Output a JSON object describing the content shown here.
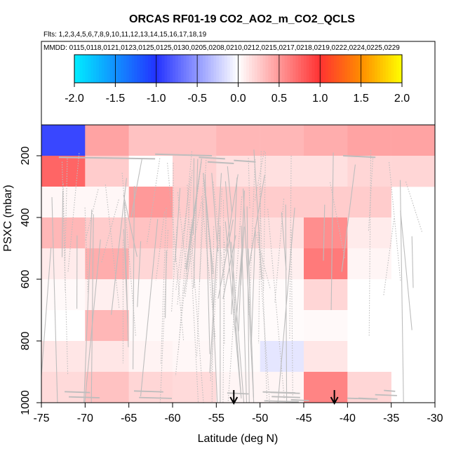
{
  "chart_data": {
    "type": "heatmap",
    "title": "ORCAS RF01-19 CO2_AO2_m_CO2_QCLS",
    "flights_label": "Flts: 1,2,3,4,5,6,7,8,9,10,11,12,13,14,15,16,17,18,19",
    "mmdd_label": "MMDD: 0115,0118,0121,0123,0125,0125,0130,0205,0208,0210,0212,0215,0217,0218,0219,0222,0224,0225,0229",
    "xlabel": "Latitude (deg N)",
    "ylabel": "PSXC (mbar)",
    "xlim": [
      -75,
      -30
    ],
    "ylim": [
      1000,
      100
    ],
    "x_ticks": [
      -75,
      -70,
      -65,
      -60,
      -55,
      -50,
      -45,
      -40,
      -35,
      -30
    ],
    "x_tick_labels": [
      "-75",
      "-70",
      "-65",
      "-60",
      "-55",
      "-50",
      "-45",
      "-40",
      "-35",
      "-30"
    ],
    "y_ticks": [
      200,
      400,
      600,
      800,
      1000
    ],
    "y_tick_labels": [
      "200",
      "400",
      "600",
      "800",
      "1000"
    ],
    "colorbar": {
      "range": [
        -2.0,
        2.0
      ],
      "ticks": [
        -2.0,
        -1.5,
        -1.0,
        -0.5,
        0.0,
        0.5,
        1.0,
        1.5,
        2.0
      ],
      "tick_labels": [
        "-2.0",
        "-1.5",
        "-1.0",
        "-0.5",
        "0.0",
        "0.5",
        "1.0",
        "1.5",
        "2.0"
      ]
    },
    "lat_bins": [
      -75,
      -70,
      -65,
      -60,
      -55,
      -50,
      -45,
      -40,
      -35,
      -30
    ],
    "p_bins": [
      100,
      200,
      300,
      400,
      500,
      600,
      700,
      800,
      900,
      1000
    ],
    "cells": [
      [
        -0.9,
        0.45,
        0.3,
        0.3,
        0.35,
        0.35,
        0.4,
        0.45,
        0.45
      ],
      [
        0.75,
        0.25,
        0.0,
        0.22,
        0.15,
        0.15,
        0.15,
        0.2,
        0.2
      ],
      [
        0.04,
        0.04,
        0.5,
        0.25,
        0.25,
        0.25,
        0.25,
        0.25,
        null
      ],
      [
        0.35,
        0.25,
        0.3,
        0.2,
        0.2,
        0.15,
        0.55,
        0.1,
        null
      ],
      [
        0.1,
        0.4,
        0.2,
        0.12,
        0.08,
        0.08,
        0.65,
        0.05,
        null
      ],
      [
        0.03,
        0.08,
        0.03,
        0.03,
        0.03,
        0.02,
        0.2,
        0.0,
        null
      ],
      [
        0.0,
        0.35,
        0.03,
        0.03,
        0.02,
        0.02,
        0.03,
        0.0,
        null
      ],
      [
        0.12,
        0.12,
        0.06,
        0.04,
        0.02,
        -0.12,
        0.12,
        0.0,
        null
      ],
      [
        0.18,
        0.3,
        0.2,
        0.18,
        0.05,
        0.05,
        0.6,
        0.2,
        null
      ]
    ],
    "arrows": [
      {
        "lat": -53.0,
        "label": "↓"
      },
      {
        "lat": -41.5,
        "label": "↓"
      }
    ]
  }
}
